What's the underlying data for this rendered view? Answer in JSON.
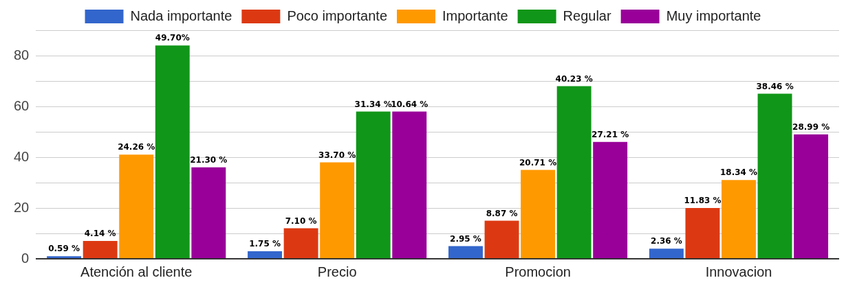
{
  "chart_data": {
    "type": "bar",
    "categories": [
      "Atención al cliente",
      "Precio",
      "Promocion",
      "Innovacion"
    ],
    "series": [
      {
        "name": "Nada importante",
        "color": "#3366cc",
        "values": [
          1,
          3,
          5,
          4
        ]
      },
      {
        "name": "Poco importante",
        "color": "#dc3912",
        "values": [
          7,
          12,
          15,
          20
        ]
      },
      {
        "name": "Importante",
        "color": "#ff9900",
        "values": [
          41,
          38,
          35,
          31
        ]
      },
      {
        "name": "Regular",
        "color": "#109618",
        "values": [
          84,
          58,
          68,
          65
        ]
      },
      {
        "name": "Muy importante",
        "color": "#990099",
        "values": [
          36,
          58,
          46,
          49
        ]
      }
    ],
    "annotations": [
      "0.59 %",
      "4.14 %",
      "24.26 %",
      "49.70%",
      "21.30 %",
      "1.75 %",
      "7.10 %",
      "33.70 %",
      "31.34 %",
      "10.64 %",
      "2.95 %",
      "8.87 %",
      "20.71 %",
      "40.23 %",
      "27.21 %",
      "2.36 %",
      "11.83 %",
      "18.34 %",
      "38.46 %",
      "28.99 %"
    ],
    "ylim": [
      0,
      90
    ],
    "yticks": [
      0,
      {
        "value": 10,
        "label": null
      },
      20,
      {
        "value": 30,
        "label": null
      },
      40,
      {
        "value": 50,
        "label": null
      },
      60,
      {
        "value": 70,
        "label": null
      },
      80,
      {
        "value": 90,
        "label": null
      }
    ],
    "grid": "y",
    "legend": "top"
  }
}
